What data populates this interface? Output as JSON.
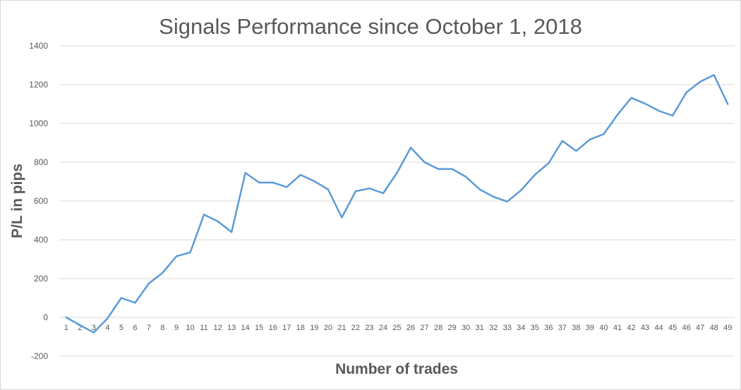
{
  "chart_data": {
    "type": "line",
    "title": "Signals Performance since October 1, 2018",
    "xlabel": "Number of trades",
    "ylabel": "P/L in pips",
    "ylim": [
      -200,
      1400
    ],
    "yticks": [
      -200,
      0,
      200,
      400,
      600,
      800,
      1000,
      1200,
      1400
    ],
    "grid": true,
    "legend": "none",
    "x": [
      1,
      2,
      3,
      4,
      5,
      6,
      7,
      8,
      9,
      10,
      11,
      12,
      13,
      14,
      15,
      16,
      17,
      18,
      19,
      20,
      21,
      22,
      23,
      24,
      25,
      26,
      27,
      28,
      29,
      30,
      31,
      32,
      33,
      34,
      35,
      36,
      37,
      38,
      39,
      40,
      41,
      42,
      43,
      44,
      45,
      46,
      47,
      48,
      49
    ],
    "series": [
      {
        "color": "#5b9bd5",
        "values": [
          0,
          -40,
          -78,
          -5,
          100,
          75,
          175,
          230,
          315,
          335,
          530,
          495,
          440,
          745,
          695,
          695,
          672,
          735,
          702,
          660,
          515,
          650,
          665,
          640,
          745,
          875,
          800,
          765,
          765,
          725,
          660,
          622,
          597,
          655,
          735,
          795,
          910,
          858,
          917,
          945,
          1045,
          1132,
          1102,
          1065,
          1040,
          1160,
          1215,
          1250,
          1100
        ]
      }
    ]
  }
}
